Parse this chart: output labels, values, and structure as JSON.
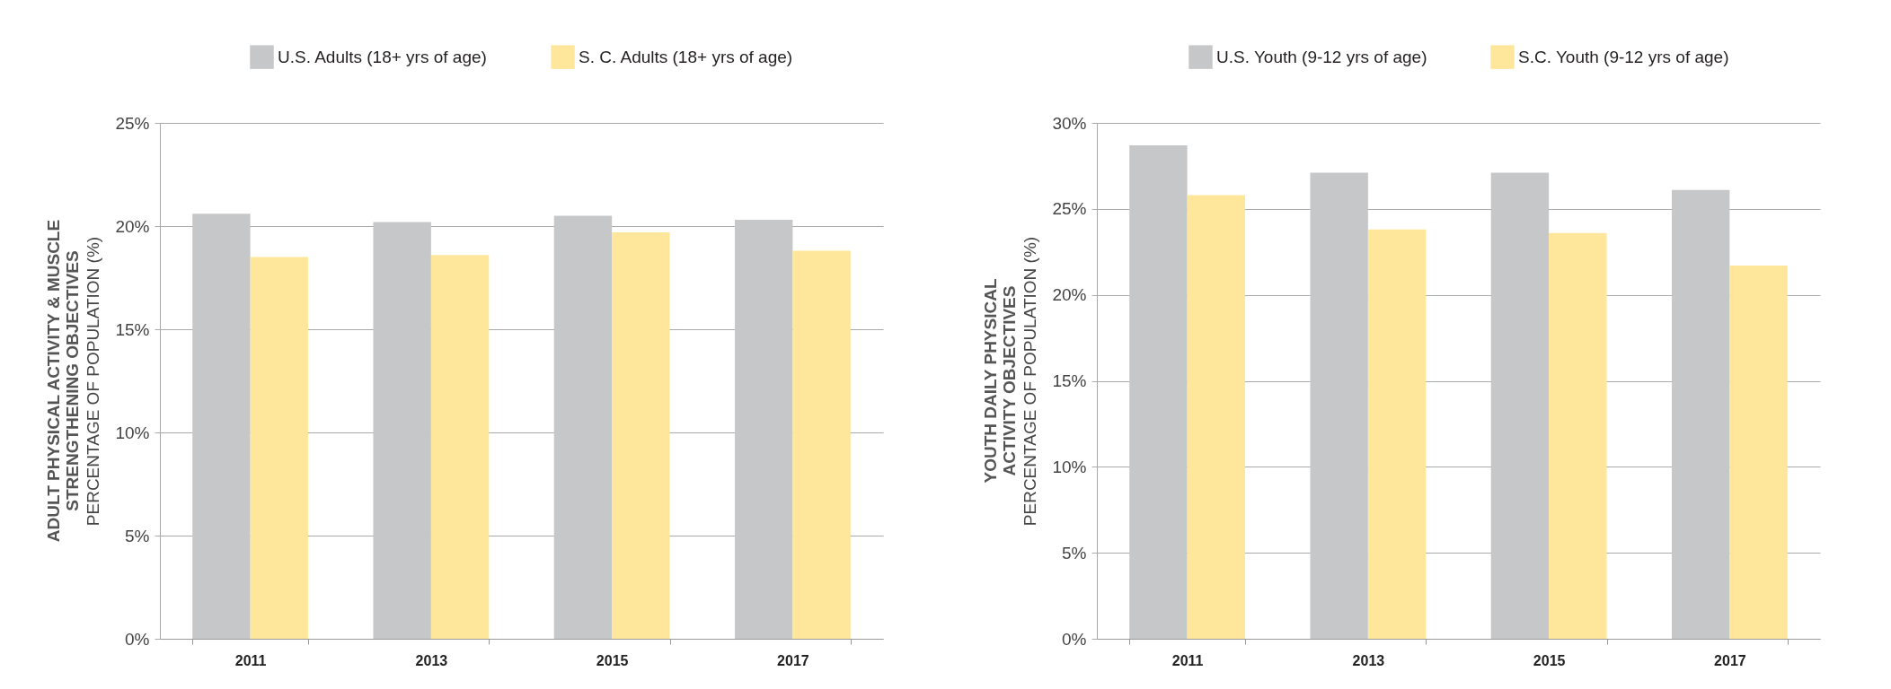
{
  "chart_data": [
    {
      "type": "bar",
      "title": "ADULT PHYSICAL ACTIVITY &  MUSCLE\nSTRENGTHENING OBJECTIVES",
      "ylabel": "PERCENTAGE OF POPULATION (%)",
      "categories": [
        "2011",
        "2013",
        "2015",
        "2017"
      ],
      "series": [
        {
          "name": "U.S. Adults (18+ yrs of age)",
          "color": "#c6c7c9",
          "values": [
            20.6,
            20.2,
            20.5,
            20.3
          ]
        },
        {
          "name": "S. C. Adults (18+ yrs of age)",
          "color": "#fee69b",
          "values": [
            18.5,
            18.6,
            19.7,
            18.8
          ]
        }
      ],
      "ylim": [
        0,
        25
      ],
      "yticks": [
        {
          "value": 0,
          "label": "0%"
        },
        {
          "value": 5,
          "label": "5%"
        },
        {
          "value": 10,
          "label": "10%"
        },
        {
          "value": 15,
          "label": "15%"
        },
        {
          "value": 20,
          "label": "20%"
        },
        {
          "value": 25,
          "label": "25%"
        }
      ],
      "grid": "y",
      "legend": "top"
    },
    {
      "type": "bar",
      "title": "YOUTH DAILY PHYSICAL\nACTIVITY OBJECTIVES",
      "ylabel": "PERCENTAGE OF POPULATION (%)",
      "categories": [
        "2011",
        "2013",
        "2015",
        "2017"
      ],
      "series": [
        {
          "name": "U.S. Youth (9-12 yrs of age)",
          "color": "#c6c7c9",
          "values": [
            28.7,
            27.1,
            27.1,
            26.1
          ]
        },
        {
          "name": "S.C. Youth (9-12 yrs of age)",
          "color": "#fee69b",
          "values": [
            25.8,
            23.8,
            23.6,
            21.7
          ]
        }
      ],
      "ylim": [
        0,
        30
      ],
      "yticks": [
        {
          "value": 0,
          "label": "0%"
        },
        {
          "value": 5,
          "label": "5%"
        },
        {
          "value": 10,
          "label": "10%"
        },
        {
          "value": 15,
          "label": "15%"
        },
        {
          "value": 20,
          "label": "20%"
        },
        {
          "value": 25,
          "label": "25%"
        },
        {
          "value": 30,
          "label": "30%"
        }
      ],
      "grid": "y",
      "legend": "top"
    }
  ]
}
